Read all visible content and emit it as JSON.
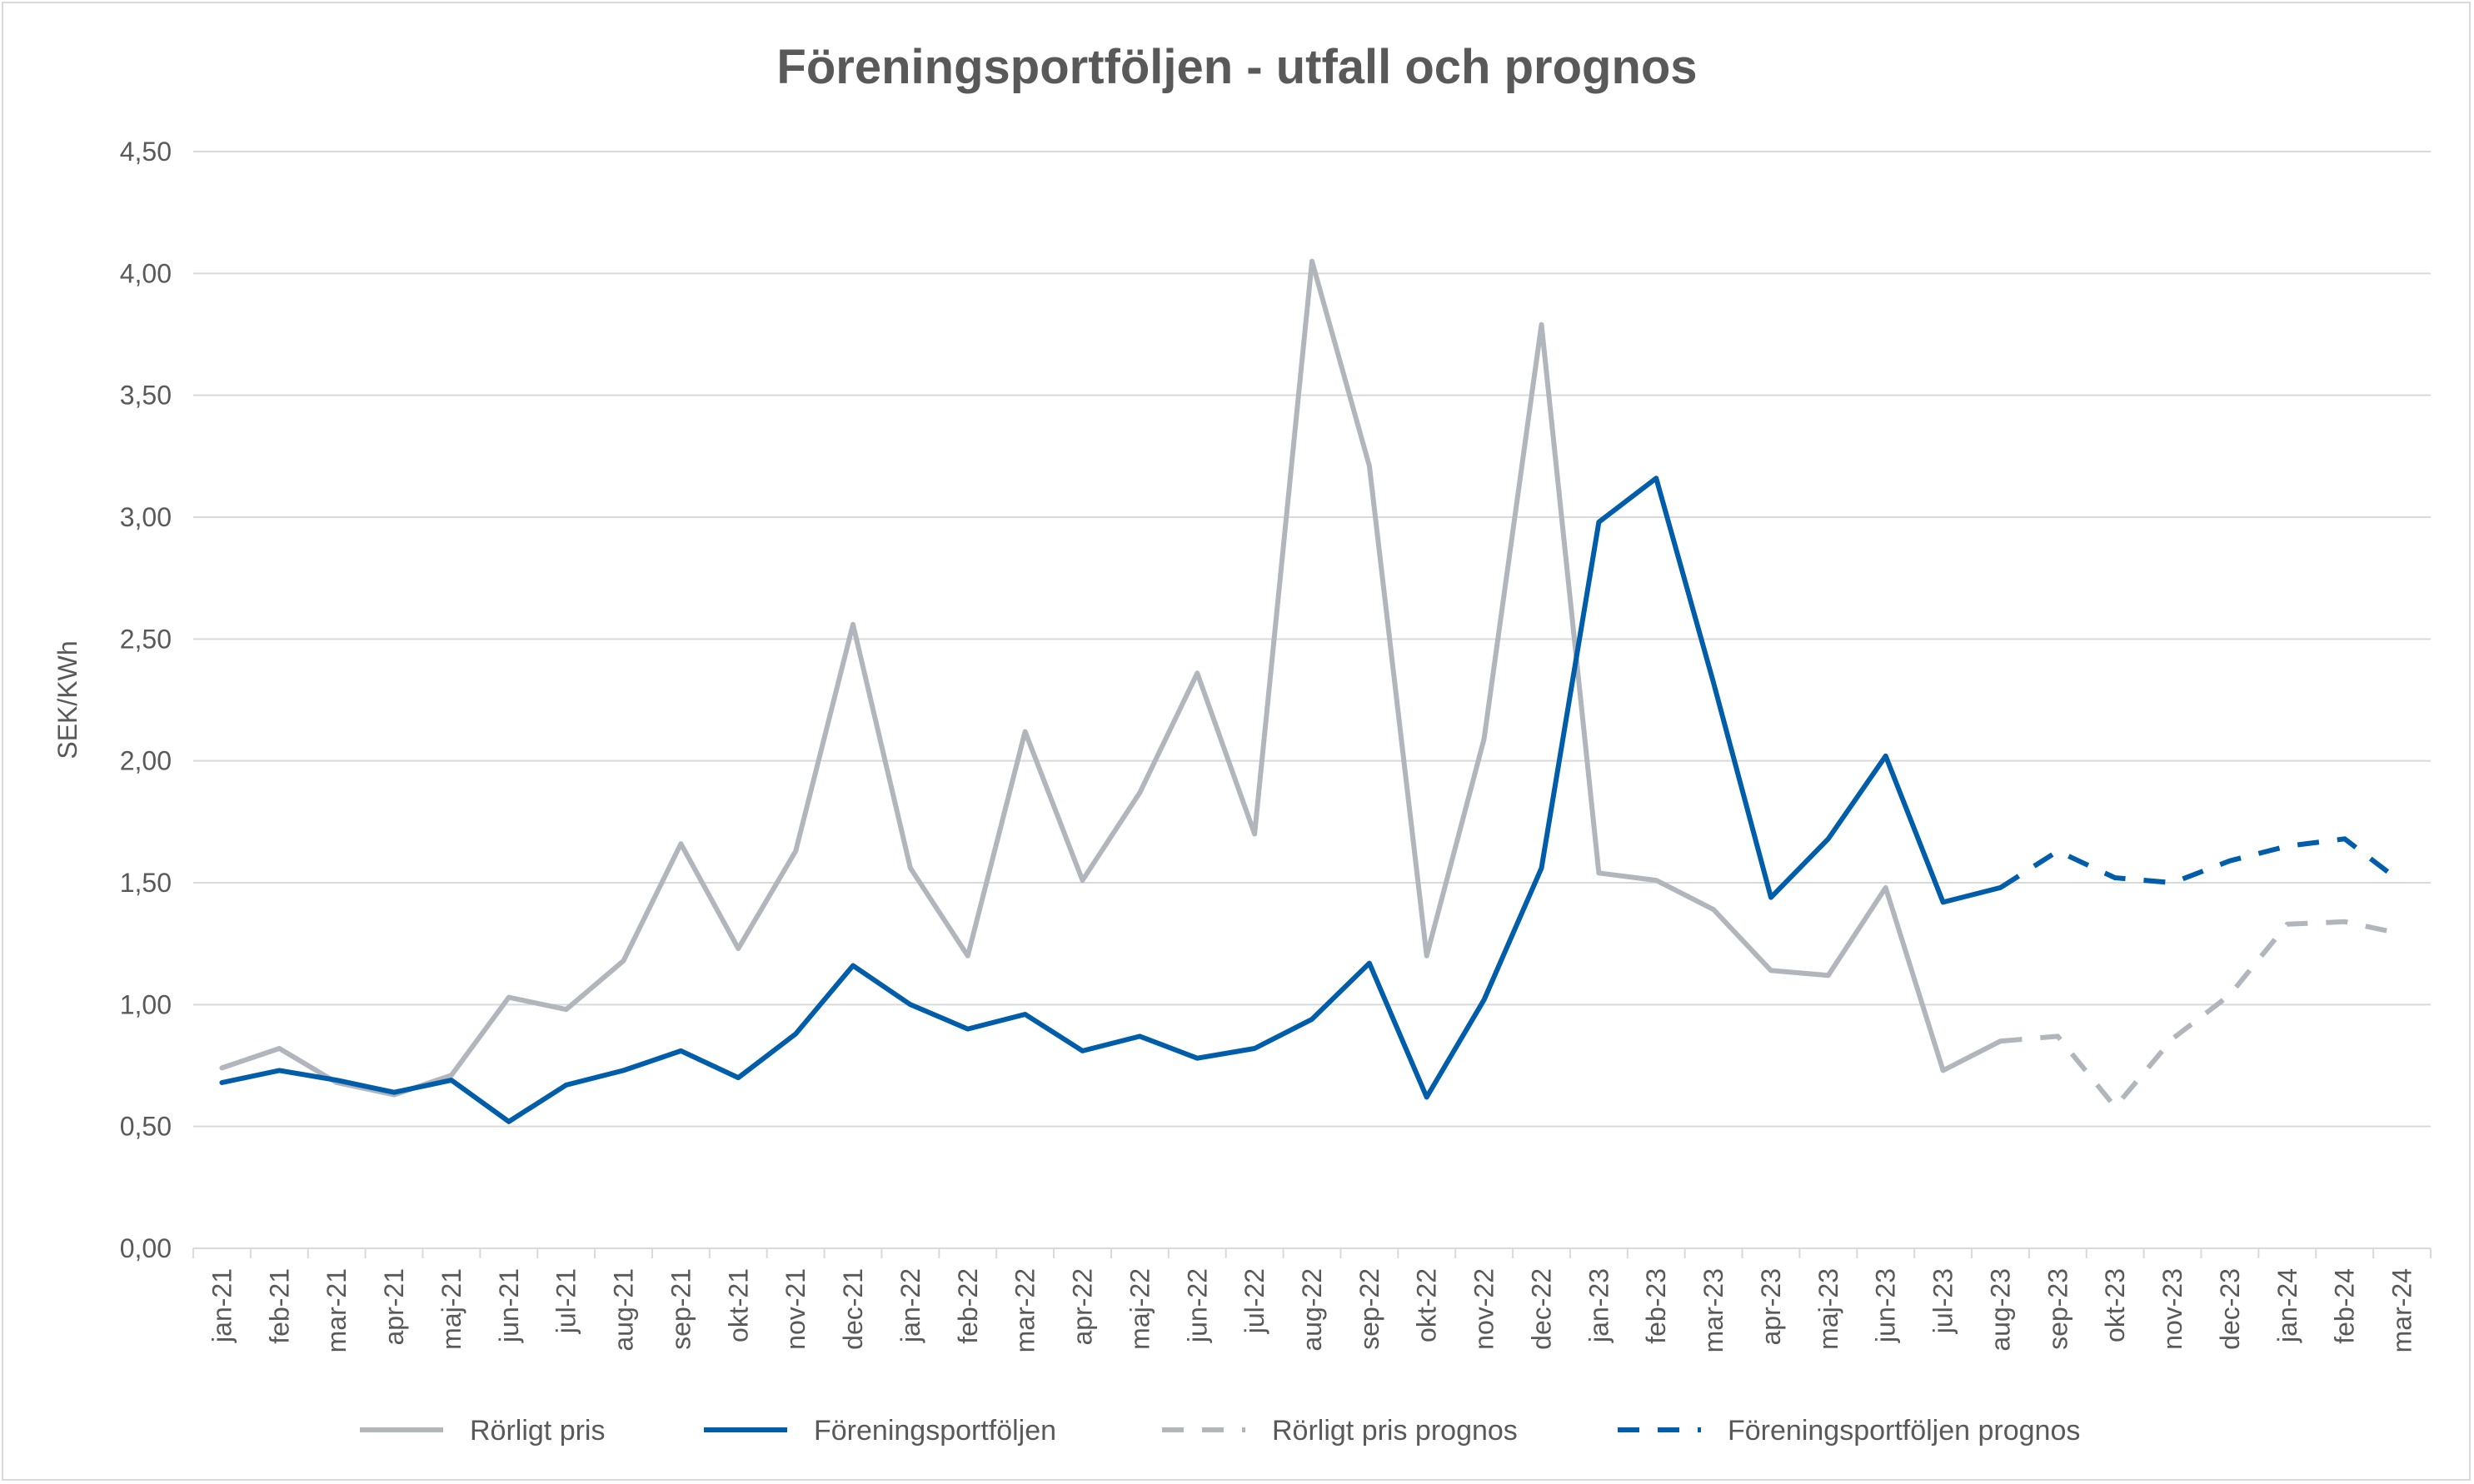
{
  "chart_data": {
    "type": "line",
    "title": "Föreningsportföljen - utfall och prognos",
    "ylabel": "SEK/KWh",
    "xlabel": "",
    "ylim": [
      0,
      4.5
    ],
    "y_ticks": [
      "0,00",
      "0,50",
      "1,00",
      "1,50",
      "2,00",
      "2,50",
      "3,00",
      "3,50",
      "4,00",
      "4,50"
    ],
    "grid": true,
    "legend_position": "bottom",
    "categories": [
      "jan-21",
      "feb-21",
      "mar-21",
      "apr-21",
      "maj-21",
      "jun-21",
      "jul-21",
      "aug-21",
      "sep-21",
      "okt-21",
      "nov-21",
      "dec-21",
      "jan-22",
      "feb-22",
      "mar-22",
      "apr-22",
      "maj-22",
      "jun-22",
      "jul-22",
      "aug-22",
      "sep-22",
      "okt-22",
      "nov-22",
      "dec-22",
      "jan-23",
      "feb-23",
      "mar-23",
      "apr-23",
      "maj-23",
      "jun-23",
      "jul-23",
      "aug-23",
      "sep-23",
      "okt-23",
      "nov-23",
      "dec-23",
      "jan-24",
      "feb-24",
      "mar-24"
    ],
    "series": [
      {
        "name": "Rörligt pris",
        "color": "#b1b6bc",
        "dashed": false,
        "values": [
          0.74,
          0.82,
          0.68,
          0.63,
          0.71,
          1.03,
          0.98,
          1.18,
          1.66,
          1.23,
          1.63,
          2.56,
          1.56,
          1.2,
          2.12,
          1.51,
          1.87,
          2.36,
          1.7,
          4.05,
          3.21,
          1.2,
          2.09,
          3.79,
          1.54,
          1.51,
          1.39,
          1.14,
          1.12,
          1.48,
          0.73,
          0.85,
          null,
          null,
          null,
          null,
          null,
          null,
          null
        ]
      },
      {
        "name": "Föreningsportföljen",
        "color": "#005daa",
        "dashed": false,
        "values": [
          0.68,
          0.73,
          0.69,
          0.64,
          0.69,
          0.52,
          0.67,
          0.73,
          0.81,
          0.7,
          0.88,
          1.16,
          1.0,
          0.9,
          0.96,
          0.81,
          0.87,
          0.78,
          0.82,
          0.94,
          1.17,
          0.62,
          1.02,
          1.56,
          2.98,
          3.16,
          2.32,
          1.44,
          1.68,
          2.02,
          1.42,
          1.48,
          null,
          null,
          null,
          null,
          null,
          null,
          null
        ]
      },
      {
        "name": "Rörligt pris prognos",
        "color": "#b1b6bc",
        "dashed": true,
        "values": [
          null,
          null,
          null,
          null,
          null,
          null,
          null,
          null,
          null,
          null,
          null,
          null,
          null,
          null,
          null,
          null,
          null,
          null,
          null,
          null,
          null,
          null,
          null,
          null,
          null,
          null,
          null,
          null,
          null,
          null,
          null,
          0.85,
          0.87,
          0.58,
          0.86,
          1.04,
          1.33,
          1.34,
          1.29
        ]
      },
      {
        "name": "Föreningsportföljen prognos",
        "color": "#005daa",
        "dashed": true,
        "values": [
          null,
          null,
          null,
          null,
          null,
          null,
          null,
          null,
          null,
          null,
          null,
          null,
          null,
          null,
          null,
          null,
          null,
          null,
          null,
          null,
          null,
          null,
          null,
          null,
          null,
          null,
          null,
          null,
          null,
          null,
          null,
          1.48,
          1.63,
          1.52,
          1.5,
          1.59,
          1.65,
          1.68,
          1.5
        ]
      }
    ]
  }
}
